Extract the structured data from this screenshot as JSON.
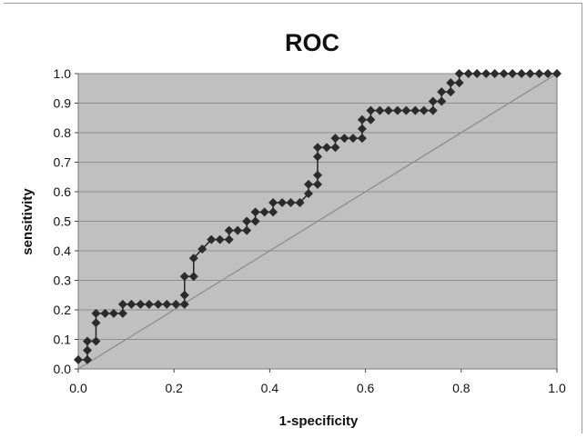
{
  "chart_data": {
    "type": "scatter",
    "title": "ROC",
    "xlabel": "1-specificity",
    "ylabel": "sensitivity",
    "xlim": [
      0,
      1
    ],
    "ylim": [
      0,
      1
    ],
    "xticks": [
      "0.0",
      "0.2",
      "0.4",
      "0.6",
      "0.8",
      "1.0"
    ],
    "yticks": [
      "0.0",
      "0.1",
      "0.2",
      "0.3",
      "0.4",
      "0.5",
      "0.6",
      "0.7",
      "0.8",
      "0.9",
      "1.0"
    ],
    "grid": "horizontal",
    "legend": "none",
    "colors": {
      "plot_background": "#c0c0c0",
      "marker": "#2b2b2b",
      "curve_line": "#222222",
      "diagonal": "#8a8a8a",
      "grid": "#8e8e8e"
    },
    "series": [
      {
        "line": true,
        "marker": "diamond",
        "x": [
          0.0,
          0.019,
          0.019,
          0.019,
          0.037,
          0.037,
          0.037,
          0.056,
          0.074,
          0.093,
          0.093,
          0.111,
          0.13,
          0.148,
          0.167,
          0.185,
          0.204,
          0.222,
          0.222,
          0.222,
          0.241,
          0.241,
          0.259,
          0.278,
          0.296,
          0.315,
          0.315,
          0.333,
          0.352,
          0.352,
          0.37,
          0.37,
          0.389,
          0.407,
          0.407,
          0.426,
          0.444,
          0.463,
          0.481,
          0.481,
          0.5,
          0.5,
          0.5,
          0.5,
          0.519,
          0.537,
          0.537,
          0.556,
          0.574,
          0.593,
          0.593,
          0.593,
          0.611,
          0.611,
          0.63,
          0.648,
          0.667,
          0.685,
          0.704,
          0.722,
          0.741,
          0.741,
          0.759,
          0.759,
          0.778,
          0.778,
          0.796,
          0.796,
          0.815,
          0.833,
          0.852,
          0.87,
          0.889,
          0.907,
          0.926,
          0.944,
          0.963,
          0.981,
          1.0
        ],
        "y": [
          0.031,
          0.031,
          0.063,
          0.094,
          0.094,
          0.156,
          0.188,
          0.188,
          0.188,
          0.188,
          0.219,
          0.219,
          0.219,
          0.219,
          0.219,
          0.219,
          0.219,
          0.219,
          0.25,
          0.313,
          0.313,
          0.375,
          0.406,
          0.438,
          0.438,
          0.438,
          0.469,
          0.469,
          0.469,
          0.5,
          0.5,
          0.531,
          0.531,
          0.531,
          0.563,
          0.563,
          0.563,
          0.563,
          0.594,
          0.625,
          0.625,
          0.656,
          0.719,
          0.75,
          0.75,
          0.75,
          0.781,
          0.781,
          0.781,
          0.781,
          0.813,
          0.844,
          0.844,
          0.875,
          0.875,
          0.875,
          0.875,
          0.875,
          0.875,
          0.875,
          0.875,
          0.906,
          0.906,
          0.938,
          0.938,
          0.969,
          0.969,
          1.0,
          1.0,
          1.0,
          1.0,
          1.0,
          1.0,
          1.0,
          1.0,
          1.0,
          1.0,
          1.0,
          1.0
        ]
      },
      {
        "line": true,
        "marker": "none",
        "x": [
          0,
          1
        ],
        "y": [
          0,
          1
        ]
      }
    ]
  }
}
